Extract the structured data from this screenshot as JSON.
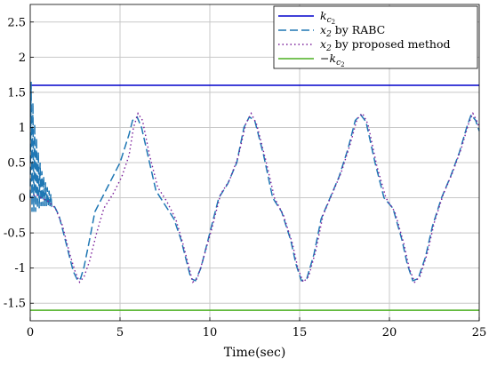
{
  "chart_data": {
    "type": "line",
    "xlabel": "Time(sec)",
    "ylabel": "",
    "title": "",
    "xlim": [
      0,
      25
    ],
    "ylim": [
      -1.75,
      2.75
    ],
    "xticks": [
      0,
      5,
      10,
      15,
      20,
      25
    ],
    "yticks": [
      -1.5,
      -1,
      -0.5,
      0,
      0.5,
      1,
      1.5,
      2,
      2.5
    ],
    "grid": true,
    "legend_position": "top-right",
    "legend": [
      {
        "base": "k",
        "sub": "c",
        "subsub": "2",
        "prefix": "",
        "suffix": ""
      },
      {
        "base": "x",
        "sub": "2",
        "subsub": "",
        "prefix": "",
        "suffix": " by RABC"
      },
      {
        "base": "x",
        "sub": "2",
        "subsub": "",
        "prefix": "",
        "suffix": " by proposed method"
      },
      {
        "base": "k",
        "sub": "c",
        "subsub": "2",
        "prefix": "−",
        "suffix": ""
      }
    ],
    "series": [
      {
        "color": "#0000cc",
        "style": "solid",
        "constant": 1.6
      },
      {
        "color": "#1f77b4",
        "style": "dashed",
        "x": [
          0,
          0.05,
          0.1,
          0.15,
          0.2,
          0.25,
          0.3,
          0.35,
          0.4,
          0.45,
          0.5,
          0.55,
          0.6,
          0.65,
          0.7,
          0.75,
          0.8,
          0.85,
          0.9,
          0.95,
          1.0,
          1.05,
          1.1,
          1.15,
          1.2,
          1.3,
          1.4,
          1.5,
          1.6,
          1.7,
          1.8,
          2.0,
          2.2,
          2.4,
          2.65,
          2.8,
          3.0,
          3.3,
          3.6,
          4.0,
          4.5,
          5.0,
          5.5,
          5.7,
          5.95,
          6.2,
          6.6,
          7.0,
          7.5,
          8.0,
          8.4,
          8.7,
          8.95,
          9.2,
          9.5,
          10.0,
          10.5,
          11.0,
          11.5,
          11.9,
          12.2,
          12.5,
          13.0,
          13.5,
          14.0,
          14.5,
          14.8,
          15.1,
          15.4,
          15.8,
          16.2,
          16.7,
          17.2,
          17.7,
          18.1,
          18.4,
          18.7,
          19.2,
          19.7,
          20.2,
          20.7,
          21.0,
          21.3,
          21.6,
          22.0,
          22.4,
          22.9,
          23.4,
          23.9,
          24.3,
          24.55,
          24.8,
          25.0
        ],
        "y": [
          0,
          1.65,
          -0.2,
          1.35,
          -0.2,
          1.05,
          -0.2,
          0.85,
          -0.15,
          0.65,
          -0.15,
          0.5,
          -0.12,
          0.38,
          -0.12,
          0.3,
          -0.12,
          0.22,
          -0.12,
          0.15,
          -0.12,
          0.1,
          -0.12,
          0.05,
          -0.12,
          -0.1,
          -0.15,
          -0.2,
          -0.25,
          -0.35,
          -0.45,
          -0.65,
          -0.85,
          -1.05,
          -1.18,
          -1.15,
          -0.98,
          -0.6,
          -0.2,
          0.0,
          0.25,
          0.5,
          0.9,
          1.1,
          1.15,
          1.0,
          0.55,
          0.1,
          -0.1,
          -0.3,
          -0.6,
          -0.9,
          -1.15,
          -1.18,
          -1.0,
          -0.5,
          0.0,
          0.2,
          0.5,
          1.0,
          1.15,
          1.1,
          0.6,
          0.0,
          -0.2,
          -0.6,
          -0.95,
          -1.18,
          -1.15,
          -0.8,
          -0.3,
          0.0,
          0.3,
          0.7,
          1.1,
          1.18,
          1.08,
          0.5,
          0.0,
          -0.15,
          -0.6,
          -0.95,
          -1.18,
          -1.15,
          -0.85,
          -0.4,
          0.0,
          0.3,
          0.65,
          1.0,
          1.18,
          1.1,
          0.95
        ]
      },
      {
        "color": "#7a1f9a",
        "style": "dotted",
        "x": [
          0,
          0.3,
          0.6,
          1.0,
          1.4,
          1.8,
          2.2,
          2.5,
          2.75,
          3.0,
          3.3,
          3.7,
          4.1,
          4.6,
          5.1,
          5.5,
          5.75,
          6.0,
          6.25,
          6.65,
          7.1,
          7.6,
          8.1,
          8.5,
          8.8,
          9.05,
          9.3,
          9.6,
          10.1,
          10.6,
          11.1,
          11.6,
          12.0,
          12.3,
          12.6,
          13.1,
          13.6,
          14.1,
          14.6,
          14.9,
          15.2,
          15.5,
          15.9,
          16.3,
          16.8,
          17.3,
          17.8,
          18.2,
          18.5,
          18.8,
          19.3,
          19.8,
          20.3,
          20.8,
          21.1,
          21.4,
          21.7,
          22.1,
          22.5,
          23.0,
          23.5,
          24.0,
          24.4,
          24.65,
          24.85,
          25.0
        ],
        "y": [
          0,
          0.05,
          0.0,
          -0.05,
          -0.15,
          -0.4,
          -0.8,
          -1.05,
          -1.2,
          -1.12,
          -0.9,
          -0.5,
          -0.15,
          0.05,
          0.3,
          0.6,
          1.0,
          1.2,
          1.1,
          0.6,
          0.15,
          -0.05,
          -0.3,
          -0.65,
          -0.95,
          -1.2,
          -1.15,
          -0.9,
          -0.45,
          0.05,
          0.25,
          0.6,
          1.05,
          1.2,
          1.05,
          0.55,
          0.0,
          -0.25,
          -0.65,
          -1.0,
          -1.2,
          -1.12,
          -0.75,
          -0.25,
          0.05,
          0.35,
          0.75,
          1.12,
          1.2,
          1.05,
          0.45,
          0.0,
          -0.2,
          -0.65,
          -1.0,
          -1.2,
          -1.12,
          -0.8,
          -0.35,
          0.05,
          0.35,
          0.7,
          1.05,
          1.2,
          1.1,
          1.0
        ]
      },
      {
        "color": "#4caf20",
        "style": "solid",
        "constant": -1.6
      }
    ]
  }
}
